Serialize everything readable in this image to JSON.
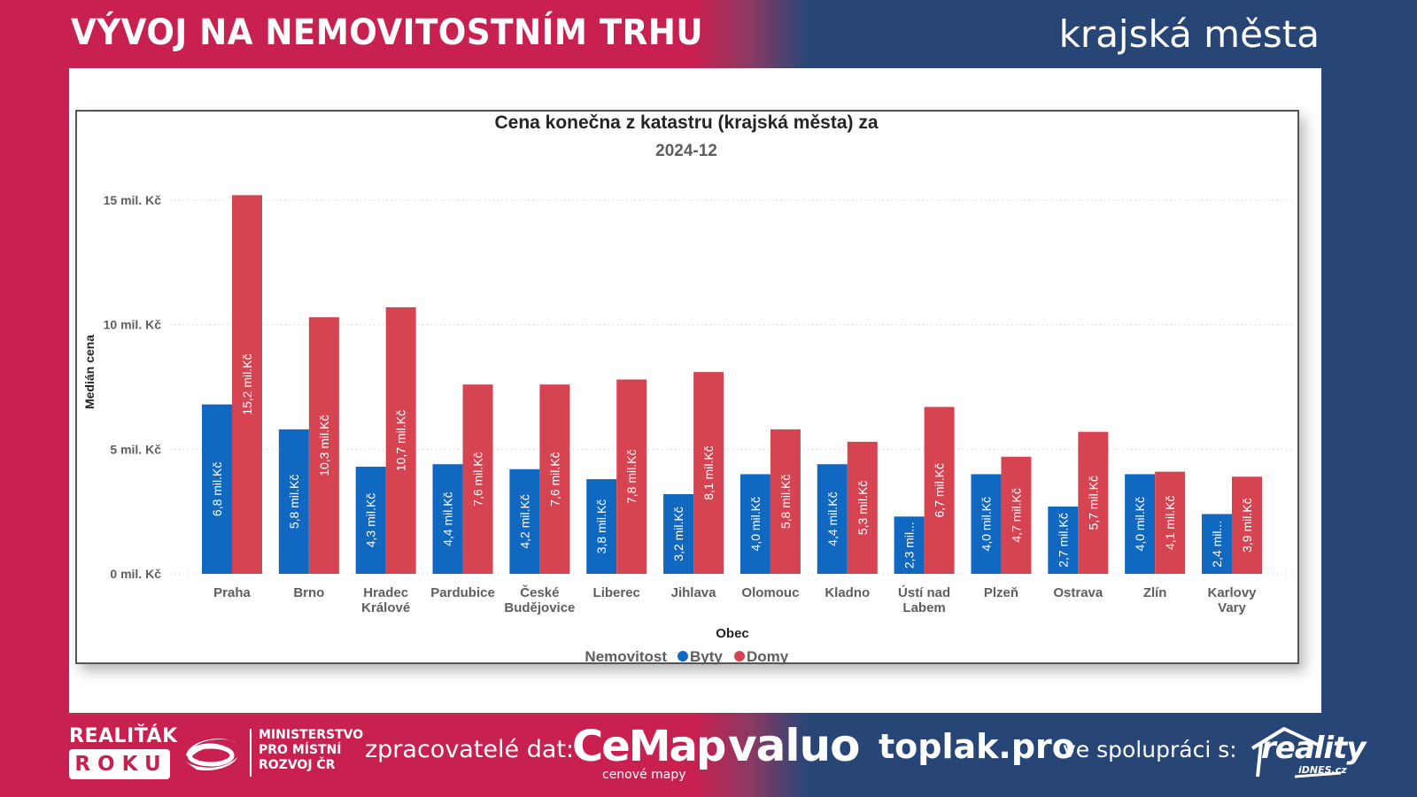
{
  "header": {
    "title": "VÝVOJ NA NEMOVITOSTNÍM TRHU",
    "subtitle": "krajská města"
  },
  "colors": {
    "brand_pink": "#C8204F",
    "brand_navy": "#274676",
    "byty": "#1168C0",
    "domy": "#D64452"
  },
  "chart_data": {
    "type": "bar",
    "title": "Cena konečna z katastru (krajská města) za",
    "subtitle": "2024-12",
    "xlabel": "Obec",
    "ylabel": "Medián cena",
    "ylim": [
      0,
      15.8
    ],
    "yticks": [
      0,
      5,
      10,
      15
    ],
    "ytick_labels": [
      "0 mil. Kč",
      "5 mil. Kč",
      "10 mil. Kč",
      "15 mil. Kč"
    ],
    "grid": true,
    "legend_title": "Nemovitost",
    "legend_position": "bottom-center",
    "categories": [
      "Praha",
      "Brno",
      "Hradec Králové",
      "Pardubice",
      "České Budějovice",
      "Liberec",
      "Jihlava",
      "Olomouc",
      "Kladno",
      "Ústí nad Labem",
      "Plzeň",
      "Ostrava",
      "Zlín",
      "Karlovy Vary"
    ],
    "category_lines": [
      [
        "Praha"
      ],
      [
        "Brno"
      ],
      [
        "Hradec",
        "Králové"
      ],
      [
        "Pardubice"
      ],
      [
        "České",
        "Budějovice"
      ],
      [
        "Liberec"
      ],
      [
        "Jihlava"
      ],
      [
        "Olomouc"
      ],
      [
        "Kladno"
      ],
      [
        "Ústí nad",
        "Labem"
      ],
      [
        "Plzeň"
      ],
      [
        "Ostrava"
      ],
      [
        "Zlín"
      ],
      [
        "Karlovy",
        "Vary"
      ]
    ],
    "series": [
      {
        "name": "Byty",
        "values": [
          6.8,
          5.8,
          4.3,
          4.4,
          4.2,
          3.8,
          3.2,
          4.0,
          4.4,
          2.3,
          4.0,
          2.7,
          4.0,
          2.4
        ],
        "labels": [
          "6,8 mil.Kč",
          "5,8 mil.Kč",
          "4,3 mil.Kč",
          "4,4 mil.Kč",
          "4,2 mil.Kč",
          "3,8 mil.Kč",
          "3,2 mil.Kč",
          "4,0 mil.Kč",
          "4,4 mil.Kč",
          "2,3 mil...",
          "4,0 mil.Kč",
          "2,7 mil.Kč",
          "4,0 mil.Kč",
          "2,4 mil..."
        ]
      },
      {
        "name": "Domy",
        "values": [
          15.2,
          10.3,
          10.7,
          7.6,
          7.6,
          7.8,
          8.1,
          5.8,
          5.3,
          6.7,
          4.7,
          5.7,
          4.1,
          3.9
        ],
        "labels": [
          "15,2 mil.Kč",
          "10,3 mil.Kč",
          "10,7 mil.Kč",
          "7,6 mil.Kč",
          "7,6 mil.Kč",
          "7,8 mil.Kč",
          "8,1 mil.Kč",
          "5,8 mil.Kč",
          "5,3 mil.Kč",
          "6,7 mil.Kč",
          "4,7 mil.Kč",
          "5,7 mil.Kč",
          "4,1 mil.Kč",
          "3,9 mil.Kč"
        ]
      }
    ]
  },
  "footer": {
    "realitak": "REALIŤÁK",
    "roku": "ROKU",
    "ministry_lines": [
      "MINISTERSTVO",
      "PRO MÍSTNÍ",
      "ROZVOJ ČR"
    ],
    "processors_label": "zpracovatelé dat:",
    "cemap": "CeMap",
    "cemap_sub": "cenové mapy",
    "valuo": "valuo",
    "toplak": "toplak.pro",
    "cooperation_label": "ve spolupráci s:",
    "reality": "reality",
    "idnes": "iDNES.cz"
  }
}
